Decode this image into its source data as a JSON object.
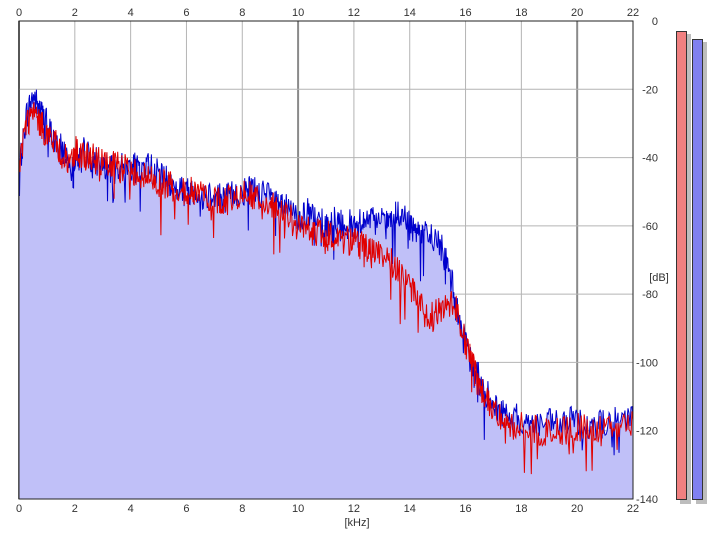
{
  "chart_data": {
    "type": "line",
    "title": "",
    "xlabel": "[kHz]",
    "ylabel": "[dB]",
    "xlim": [
      0,
      22
    ],
    "ylim": [
      -140,
      0
    ],
    "x_ticks": [
      "0",
      "2",
      "4",
      "6",
      "8",
      "10",
      "12",
      "14",
      "16",
      "18",
      "20",
      "22"
    ],
    "y_ticks": [
      "0",
      "-20",
      "-40",
      "-60",
      "-80",
      "-100",
      "-120",
      "-140"
    ],
    "grid": true,
    "series": [
      {
        "color": "#0000cc",
        "fill": "#c0c0f8",
        "points": [
          [
            0,
            -45
          ],
          [
            0.25,
            -28
          ],
          [
            0.5,
            -22
          ],
          [
            0.75,
            -26
          ],
          [
            1,
            -30
          ],
          [
            1.3,
            -36
          ],
          [
            1.6,
            -38
          ],
          [
            1.9,
            -42
          ],
          [
            2,
            -40
          ],
          [
            2.3,
            -38
          ],
          [
            2.6,
            -40
          ],
          [
            3,
            -42
          ],
          [
            3.3,
            -44
          ],
          [
            3.6,
            -43
          ],
          [
            4,
            -42
          ],
          [
            4.3,
            -44
          ],
          [
            4.6,
            -42
          ],
          [
            5,
            -45
          ],
          [
            5.3,
            -47
          ],
          [
            5.6,
            -49
          ],
          [
            6,
            -50
          ],
          [
            6.3,
            -49
          ],
          [
            6.6,
            -51
          ],
          [
            7,
            -50
          ],
          [
            7.3,
            -52
          ],
          [
            7.6,
            -51
          ],
          [
            8,
            -50
          ],
          [
            8.3,
            -49
          ],
          [
            8.6,
            -50
          ],
          [
            9,
            -52
          ],
          [
            9.3,
            -53
          ],
          [
            9.6,
            -55
          ],
          [
            10,
            -58
          ],
          [
            10.3,
            -56
          ],
          [
            10.6,
            -58
          ],
          [
            11,
            -60
          ],
          [
            11.3,
            -58
          ],
          [
            11.6,
            -59
          ],
          [
            12,
            -60
          ],
          [
            12.3,
            -58
          ],
          [
            12.6,
            -59
          ],
          [
            13,
            -59
          ],
          [
            13.3,
            -58
          ],
          [
            13.6,
            -57
          ],
          [
            14,
            -59
          ],
          [
            14.3,
            -61
          ],
          [
            14.6,
            -63
          ],
          [
            15,
            -64
          ],
          [
            15.3,
            -70
          ],
          [
            15.6,
            -80
          ],
          [
            15.9,
            -92
          ],
          [
            16.2,
            -100
          ],
          [
            16.5,
            -105
          ],
          [
            16.8,
            -110
          ],
          [
            17.2,
            -114
          ],
          [
            17.6,
            -116
          ],
          [
            18,
            -117
          ],
          [
            18.5,
            -118
          ],
          [
            19,
            -118
          ],
          [
            19.5,
            -118
          ],
          [
            20,
            -117
          ],
          [
            20.5,
            -118
          ],
          [
            21,
            -118
          ],
          [
            21.5,
            -117
          ],
          [
            22,
            -116
          ]
        ]
      },
      {
        "color": "#e00000",
        "points": [
          [
            0,
            -42
          ],
          [
            0.25,
            -30
          ],
          [
            0.5,
            -27
          ],
          [
            0.75,
            -30
          ],
          [
            1,
            -33
          ],
          [
            1.3,
            -36
          ],
          [
            1.6,
            -40
          ],
          [
            1.9,
            -42
          ],
          [
            2,
            -38
          ],
          [
            2.3,
            -39
          ],
          [
            2.6,
            -40
          ],
          [
            3,
            -42
          ],
          [
            3.3,
            -42
          ],
          [
            3.6,
            -43
          ],
          [
            4,
            -43
          ],
          [
            4.3,
            -45
          ],
          [
            4.6,
            -46
          ],
          [
            5,
            -47
          ],
          [
            5.3,
            -48
          ],
          [
            5.6,
            -49
          ],
          [
            6,
            -50
          ],
          [
            6.3,
            -50
          ],
          [
            6.6,
            -51
          ],
          [
            7,
            -52
          ],
          [
            7.3,
            -53
          ],
          [
            7.6,
            -52
          ],
          [
            8,
            -50
          ],
          [
            8.3,
            -51
          ],
          [
            8.6,
            -53
          ],
          [
            9,
            -54
          ],
          [
            9.3,
            -56
          ],
          [
            9.6,
            -57
          ],
          [
            10,
            -60
          ],
          [
            10.3,
            -61
          ],
          [
            10.6,
            -62
          ],
          [
            11,
            -63
          ],
          [
            11.3,
            -63
          ],
          [
            11.6,
            -64
          ],
          [
            12,
            -64
          ],
          [
            12.3,
            -66
          ],
          [
            12.6,
            -68
          ],
          [
            13,
            -68
          ],
          [
            13.3,
            -70
          ],
          [
            13.6,
            -74
          ],
          [
            14,
            -78
          ],
          [
            14.3,
            -82
          ],
          [
            14.6,
            -86
          ],
          [
            15,
            -86
          ],
          [
            15.3,
            -82
          ],
          [
            15.6,
            -82
          ],
          [
            15.9,
            -92
          ],
          [
            16.2,
            -100
          ],
          [
            16.5,
            -106
          ],
          [
            16.8,
            -112
          ],
          [
            17.2,
            -115
          ],
          [
            17.6,
            -118
          ],
          [
            18,
            -119
          ],
          [
            18.5,
            -120
          ],
          [
            19,
            -121
          ],
          [
            19.5,
            -120
          ],
          [
            20,
            -119
          ],
          [
            20.5,
            -120
          ],
          [
            21,
            -119
          ],
          [
            21.5,
            -118
          ],
          [
            22,
            -117
          ]
        ]
      }
    ]
  },
  "meters": {
    "left_color": "#f08080",
    "right_color": "#8080f0"
  }
}
